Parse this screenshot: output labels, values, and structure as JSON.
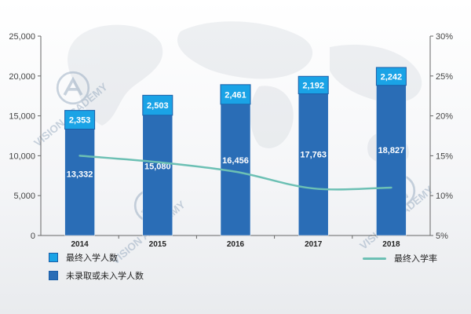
{
  "chart_data": {
    "type": "bar",
    "stacked": true,
    "categories": [
      "2014",
      "2015",
      "2016",
      "2017",
      "2018"
    ],
    "series": [
      {
        "name": "未录取或未入学人数",
        "kind": "bar",
        "axis": "left",
        "values": [
          13332,
          15080,
          16456,
          17763,
          18827
        ],
        "labels": [
          "13,332",
          "15,080",
          "16,456",
          "17,763",
          "18,827"
        ],
        "color": "#2a6db6"
      },
      {
        "name": "最终入学人数",
        "kind": "bar",
        "axis": "left",
        "values": [
          2353,
          2503,
          2461,
          2192,
          2242
        ],
        "labels": [
          "2,353",
          "2,503",
          "2,461",
          "2,192",
          "2,242"
        ],
        "color": "#1aa3e6"
      },
      {
        "name": "最终入学率",
        "kind": "line",
        "axis": "right",
        "values": [
          15.0,
          14.2,
          13.0,
          10.9,
          11.0
        ],
        "color": "#6cc0b4"
      }
    ],
    "y_left": {
      "ticks": [
        "0",
        "5,000",
        "10,000",
        "15,000",
        "20,000",
        "25,000"
      ],
      "ylim": [
        0,
        25000
      ]
    },
    "y_right": {
      "ticks": [
        "5%",
        "10%",
        "15%",
        "20%",
        "25%",
        "30%"
      ],
      "ylim": [
        5,
        30
      ]
    },
    "grid": false,
    "legend_position": "bottom"
  },
  "legend": {
    "enrolled": "最终入学人数",
    "not_enrolled": "未录取或未入学人数",
    "rate": "最终入学率"
  },
  "watermark": {
    "brand": "VISION ACADEMY",
    "cn": "匯尋國際教育",
    "sub": "A-LEVEL · IB · AP · GCSE"
  },
  "colors": {
    "bar_bottom": "#2a6db6",
    "bar_top": "#1aa3e6",
    "line": "#6cc0b4"
  }
}
